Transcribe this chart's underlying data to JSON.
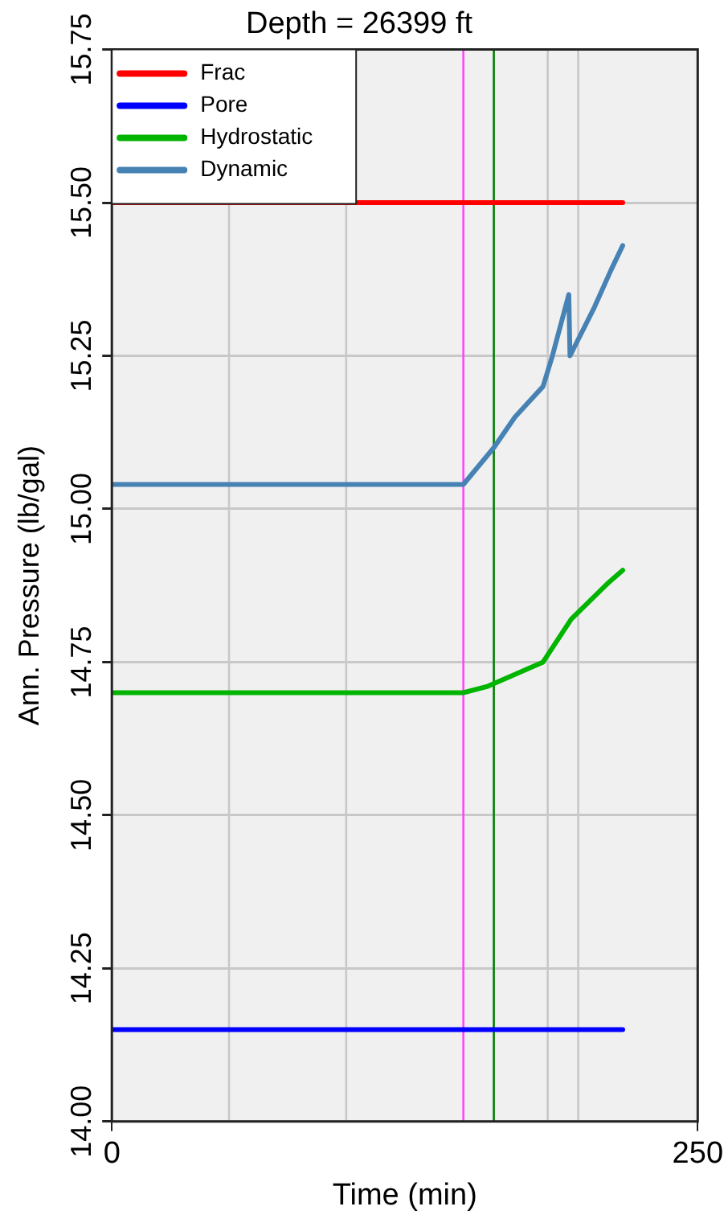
{
  "chart_data": {
    "type": "line",
    "title": "Depth = 26399 ft",
    "xlabel": "Time (min)",
    "ylabel": "Ann. Pressure (lb/gal)",
    "xlim": [
      0,
      250
    ],
    "xticks": [
      0,
      250
    ],
    "ylim": [
      14,
      15.75
    ],
    "yticks": [
      {
        "value": 14,
        "label": "14.00"
      },
      {
        "value": 14.25,
        "label": "14.25"
      },
      {
        "value": 14.5,
        "label": "14.50"
      },
      {
        "value": 14.75,
        "label": "14.75"
      },
      {
        "value": 15,
        "label": "15.00"
      },
      {
        "value": 15.25,
        "label": "15.25"
      },
      {
        "value": 15.5,
        "label": "15.50"
      },
      {
        "value": 15.75,
        "label": "15.75"
      }
    ],
    "grid": "y",
    "legend": "top left",
    "marker": "none",
    "line_style": "solid",
    "series": [
      {
        "name": "Frac",
        "color": "#ff0000",
        "x": [
          0,
          218
        ],
        "values": [
          15.5,
          15.5
        ]
      },
      {
        "name": "Pore",
        "color": "#0000ff",
        "x": [
          0,
          218
        ],
        "values": [
          14.15,
          14.15
        ]
      },
      {
        "name": "Hydrostatic",
        "color": "#00b400",
        "x": [
          0,
          150,
          160,
          184,
          196,
          212,
          218
        ],
        "values": [
          14.7,
          14.7,
          14.71,
          14.75,
          14.82,
          14.88,
          14.9
        ]
      },
      {
        "name": "Dynamic",
        "color": "#4682b4",
        "x": [
          0,
          150,
          163,
          172,
          184,
          188,
          195,
          195.5,
          206,
          213,
          218
        ],
        "values": [
          15.04,
          15.04,
          15.1,
          15.15,
          15.2,
          15.25,
          15.35,
          15.25,
          15.33,
          15.39,
          15.43
        ]
      }
    ],
    "ref_lines": [
      {
        "axis": "x",
        "value": 50,
        "color": "#c8c8c8"
      },
      {
        "axis": "x",
        "value": 100,
        "color": "#c8c8c8"
      },
      {
        "axis": "x",
        "value": 186,
        "color": "#c8c8c8"
      },
      {
        "axis": "x",
        "value": 199,
        "color": "#c8c8c8"
      },
      {
        "axis": "x",
        "value": 150,
        "color": "#ff44ff"
      },
      {
        "axis": "x",
        "value": 163,
        "color": "#008000"
      }
    ]
  }
}
